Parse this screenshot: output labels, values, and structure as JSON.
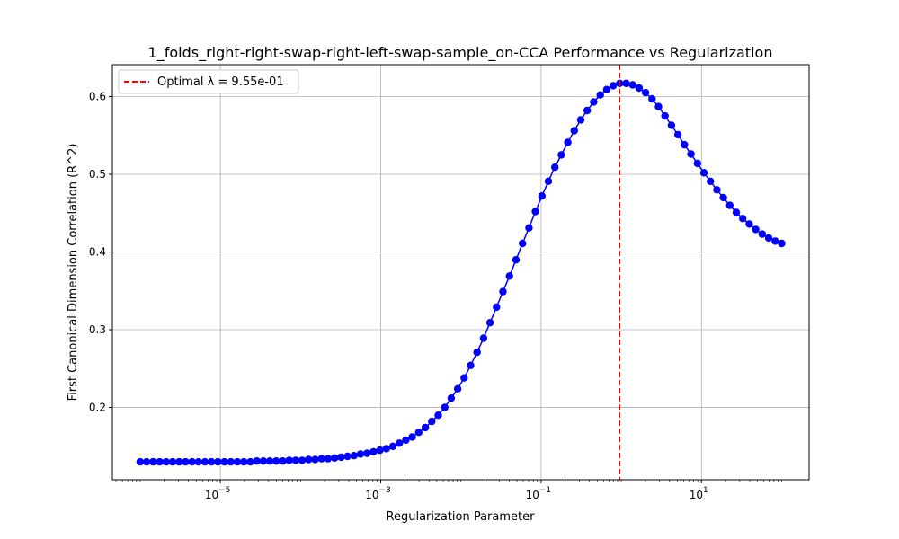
{
  "chart_data": {
    "type": "line",
    "title": "1_folds_right-right-swap-right-left-swap-sample_on-CCA Performance vs Regularization",
    "xlabel": "Regularization Parameter",
    "ylabel": "First Canonical Dimension Correlation (R^2)",
    "xscale": "log",
    "xlim": [
      4.5e-07,
      220.0
    ],
    "ylim": [
      0.107,
      0.641
    ],
    "grid": true,
    "legend_position": "top-left",
    "x_ticks": [
      {
        "value": 1e-05,
        "base": "10",
        "exp": "−5"
      },
      {
        "value": 0.001,
        "base": "10",
        "exp": "−3"
      },
      {
        "value": 0.1,
        "base": "10",
        "exp": "−1"
      },
      {
        "value": 10.0,
        "base": "10",
        "exp": "1"
      }
    ],
    "y_ticks": [
      "0.2",
      "0.3",
      "0.4",
      "0.5",
      "0.6"
    ],
    "series": [
      {
        "color": "#0000ff",
        "x_log10_start": -6,
        "x_log10_end": 2,
        "values": [
          0.13,
          0.13,
          0.13,
          0.13,
          0.13,
          0.13,
          0.13,
          0.13,
          0.13,
          0.13,
          0.13,
          0.13,
          0.13,
          0.13,
          0.13,
          0.13,
          0.13,
          0.13,
          0.131,
          0.131,
          0.131,
          0.131,
          0.131,
          0.132,
          0.132,
          0.132,
          0.133,
          0.133,
          0.134,
          0.134,
          0.135,
          0.136,
          0.137,
          0.138,
          0.14,
          0.141,
          0.143,
          0.145,
          0.147,
          0.15,
          0.154,
          0.158,
          0.162,
          0.168,
          0.174,
          0.182,
          0.19,
          0.2,
          0.212,
          0.224,
          0.238,
          0.254,
          0.271,
          0.289,
          0.309,
          0.329,
          0.349,
          0.369,
          0.39,
          0.411,
          0.431,
          0.452,
          0.472,
          0.491,
          0.509,
          0.525,
          0.541,
          0.556,
          0.57,
          0.582,
          0.593,
          0.602,
          0.609,
          0.614,
          0.617,
          0.617,
          0.615,
          0.611,
          0.605,
          0.597,
          0.587,
          0.575,
          0.563,
          0.551,
          0.538,
          0.526,
          0.514,
          0.502,
          0.491,
          0.48,
          0.47,
          0.46,
          0.451,
          0.443,
          0.436,
          0.429,
          0.423,
          0.418,
          0.414,
          0.411
        ]
      }
    ],
    "optimal_line": {
      "x": 0.955,
      "color": "#ff0000",
      "label": "Optimal λ = 9.55e-01"
    }
  }
}
